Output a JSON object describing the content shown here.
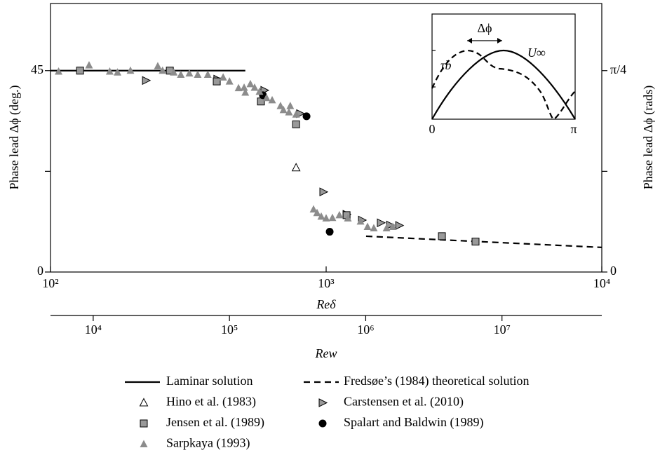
{
  "chart_data": {
    "type": "scatter",
    "xlabel": "Reδ",
    "ylabel": "Phase lead Δϕ (deg.)",
    "y2label": "Phase lead Δϕ (rads)",
    "xscale": "log",
    "xlim": [
      100,
      10000
    ],
    "xticks": [
      {
        "value": 100,
        "label": "10²"
      },
      {
        "value": 1000,
        "label": "10³"
      },
      {
        "value": 10000,
        "label": "10⁴"
      }
    ],
    "ylim": [
      0,
      60
    ],
    "yticks": [
      0,
      45
    ],
    "yminor_ticks": [
      22.5
    ],
    "y2lim": [
      0,
      1.0472
    ],
    "y2ticks": [
      0,
      {
        "value": 0.7854,
        "label": "π/4"
      }
    ],
    "y2minor_ticks": [
      0.3927
    ],
    "x2label": "Rew",
    "x2lim": [
      4860,
      54000000
    ],
    "x2ticks": [
      {
        "value": 10000,
        "label": "10⁴"
      },
      {
        "value": 100000,
        "label": "10⁵"
      },
      {
        "value": 1000000,
        "label": "10⁶"
      },
      {
        "value": 10000000,
        "label": "10⁷"
      }
    ],
    "series": [
      {
        "name": "Laminar solution",
        "kind": "line",
        "style": "solid",
        "color": "#000000",
        "x": [
          100,
          509
        ],
        "values": [
          45,
          45
        ]
      },
      {
        "name": "Fredsøe’s (1984) theoretical solution",
        "kind": "line",
        "style": "dashed",
        "color": "#000000",
        "x": [
          1396,
          10000
        ],
        "values": [
          8.0,
          5.5
        ]
      },
      {
        "name": "Hino et al. (1983)",
        "kind": "marker",
        "marker": "triangle-up",
        "color": "#ffffff",
        "x": [
          778
        ],
        "values": [
          23.3
        ]
      },
      {
        "name": "Carstensen et al. (2010)",
        "kind": "marker",
        "marker": "triangle-right",
        "color": "#999999",
        "x": [
          222,
          403,
          597,
          805,
          977,
          1186,
          1349,
          1579,
          1706,
          1841
        ],
        "values": [
          42.8,
          43.1,
          40.6,
          35.4,
          17.9,
          12.9,
          11.6,
          11.0,
          10.5,
          10.4
        ]
      },
      {
        "name": "Jensen et al. (1989)",
        "kind": "marker",
        "marker": "square",
        "color": "#999999",
        "x": [
          128,
          271,
          401,
          580,
          778,
          1186,
          2630,
          3483
        ],
        "values": [
          45,
          45,
          42.6,
          38.1,
          33.0,
          12.7,
          8.0,
          6.8
        ]
      },
      {
        "name": "Spalart and Baldwin (1989)",
        "kind": "marker",
        "marker": "circle",
        "color": "#000000",
        "x": [
          590,
          849,
          1030
        ],
        "values": [
          39.5,
          34.8,
          9.0
        ]
      },
      {
        "name": "Sarpkaya (1993)",
        "kind": "marker",
        "marker": "triangle-filled",
        "color": "#8c8c8c",
        "x": [
          107,
          138,
          164,
          175,
          195,
          245,
          255,
          280,
          297,
          319,
          342,
          372,
          423,
          446,
          481,
          504,
          509,
          531,
          550,
          573,
          608,
          637,
          683,
          700,
          733,
          741,
          778,
          900,
          927,
          960,
          1000,
          1054,
          1117,
          1199,
          1333,
          1413,
          1489,
          1656,
          1745
        ],
        "values": [
          44.8,
          46.2,
          44.8,
          44.6,
          45.0,
          46.0,
          45.0,
          44.6,
          44.1,
          44.4,
          44.1,
          44.1,
          43.5,
          42.6,
          41.1,
          41.2,
          40.1,
          42.0,
          41.2,
          40.3,
          38.9,
          38.4,
          37.1,
          36.2,
          35.7,
          37.1,
          35.2,
          14.0,
          13.2,
          12.4,
          12.0,
          12.1,
          12.7,
          12.0,
          11.3,
          10.1,
          9.8,
          9.8,
          10.1
        ]
      }
    ],
    "inset": {
      "xtick_labels": [
        "0",
        "π"
      ],
      "shear_label": "τb",
      "velocity_label": "U∞",
      "lead_label": "Δϕ"
    }
  }
}
